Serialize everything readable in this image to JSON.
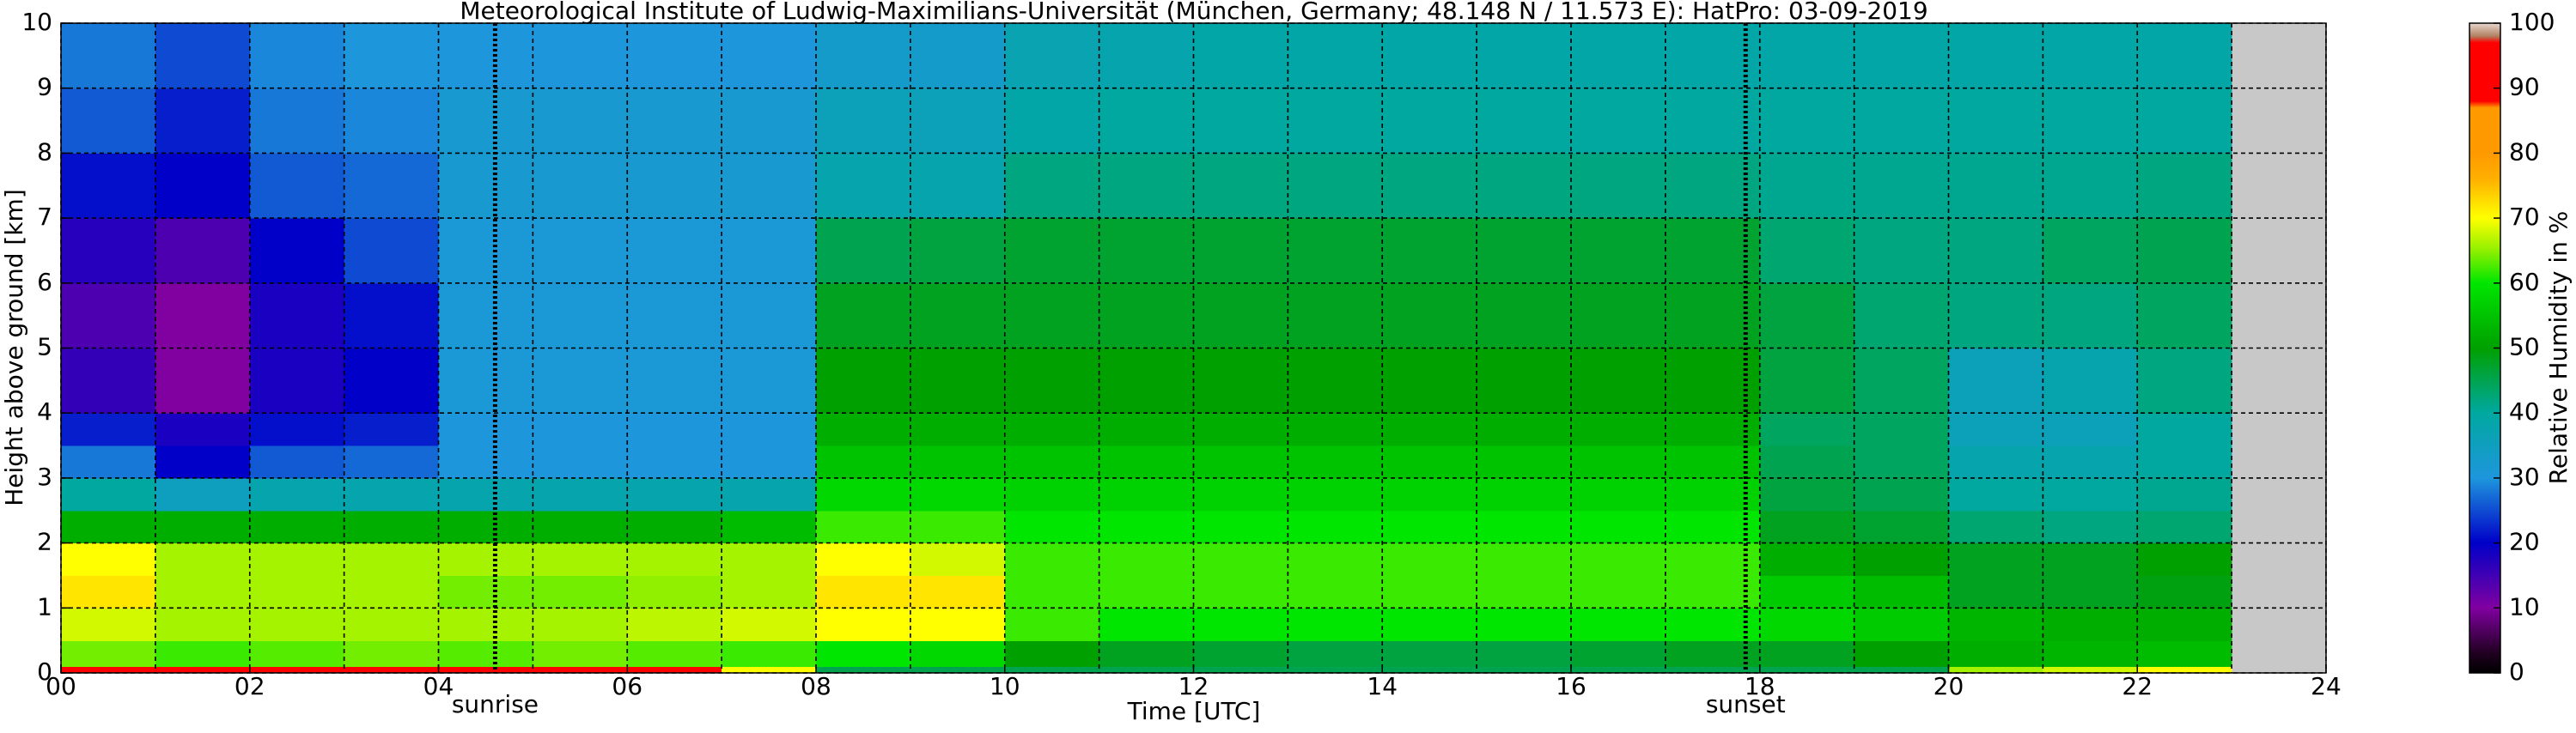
{
  "chart_data": {
    "type": "heatmap",
    "title": "Meteorological Institute of Ludwig-Maximilians-Universität (München, Germany; 48.148 N / 11.573 E):    HatPro: 03-09-2019",
    "xlabel": "Time [UTC]",
    "ylabel": "Height above ground [km]",
    "colorbar_label": "Relative Humidity in %",
    "x_edges": [
      0,
      1,
      2,
      3,
      4,
      5,
      6,
      7,
      8,
      9,
      10,
      11,
      12,
      13,
      14,
      15,
      16,
      17,
      18,
      19,
      20,
      21,
      22,
      23
    ],
    "y_edges": [
      0,
      0.1,
      0.5,
      1,
      1.5,
      2,
      2.5,
      3,
      3.5,
      4,
      5,
      6,
      7,
      8,
      9,
      10
    ],
    "values": [
      [
        92,
        92,
        92,
        92,
        92,
        92,
        92,
        70,
        45,
        45,
        45,
        45,
        45,
        45,
        45,
        45,
        45,
        45,
        45,
        45,
        66,
        68,
        70
      ],
      [
        64,
        62,
        63,
        64,
        63,
        64,
        63,
        62,
        60,
        58,
        50,
        48,
        47,
        46,
        46,
        46,
        47,
        48,
        48,
        50,
        52,
        53,
        54
      ],
      [
        68,
        66,
        66,
        66,
        66,
        66,
        67,
        68,
        70,
        70,
        62,
        60,
        60,
        60,
        60,
        60,
        60,
        60,
        58,
        56,
        53,
        52,
        52
      ],
      [
        72,
        66,
        66,
        66,
        64,
        64,
        65,
        66,
        72,
        72,
        62,
        62,
        62,
        62,
        62,
        62,
        62,
        62,
        56,
        54,
        48,
        48,
        49
      ],
      [
        70,
        66,
        66,
        66,
        66,
        66,
        66,
        66,
        70,
        68,
        62,
        62,
        62,
        62,
        62,
        62,
        62,
        62,
        52,
        50,
        48,
        48,
        50
      ],
      [
        52,
        52,
        52,
        52,
        52,
        52,
        52,
        54,
        62,
        62,
        60,
        60,
        60,
        60,
        60,
        60,
        60,
        60,
        48,
        47,
        43,
        42,
        43
      ],
      [
        40,
        35,
        38,
        38,
        38,
        38,
        38,
        38,
        58,
        58,
        57,
        57,
        57,
        57,
        57,
        57,
        57,
        57,
        46,
        45,
        40,
        40,
        41
      ],
      [
        28,
        20,
        26,
        27,
        30,
        30,
        30,
        30,
        55,
        55,
        55,
        55,
        55,
        55,
        55,
        55,
        55,
        55,
        45,
        44,
        38,
        38,
        40
      ],
      [
        22,
        18,
        21,
        22,
        30,
        30,
        30,
        30,
        52,
        52,
        52,
        52,
        52,
        52,
        52,
        52,
        52,
        52,
        44,
        44,
        36,
        36,
        40
      ],
      [
        16,
        10,
        18,
        20,
        31,
        31,
        31,
        31,
        50,
        50,
        50,
        50,
        50,
        50,
        50,
        50,
        50,
        50,
        46,
        44,
        36,
        38,
        42
      ],
      [
        14,
        10,
        18,
        21,
        31,
        31,
        31,
        31,
        48,
        48,
        48,
        48,
        48,
        48,
        48,
        48,
        48,
        48,
        46,
        43,
        42,
        42,
        44
      ],
      [
        17,
        14,
        20,
        25,
        31,
        31,
        31,
        31,
        45,
        46,
        47,
        47,
        47,
        47,
        47,
        47,
        47,
        47,
        43,
        42,
        42,
        44,
        45
      ],
      [
        21,
        20,
        26,
        27,
        32,
        32,
        32,
        32,
        38,
        38,
        42,
        42,
        42,
        42,
        42,
        42,
        42,
        42,
        41,
        41,
        41,
        41,
        42
      ],
      [
        26,
        22,
        28,
        29,
        32,
        32,
        32,
        32,
        36,
        36,
        39,
        40,
        40,
        40,
        40,
        40,
        40,
        40,
        40,
        40,
        40,
        40,
        40
      ],
      [
        28,
        25,
        29,
        30,
        30,
        30,
        30,
        30,
        33,
        33,
        37,
        38,
        39,
        39,
        39,
        39,
        39,
        39,
        39,
        39,
        39,
        39,
        39
      ]
    ],
    "xlim": [
      0,
      24
    ],
    "xticks": [
      {
        "value": 0,
        "label": "00"
      },
      {
        "value": 2,
        "label": "02"
      },
      {
        "value": 4,
        "label": "04"
      },
      {
        "value": 6,
        "label": "06"
      },
      {
        "value": 8,
        "label": "08"
      },
      {
        "value": 10,
        "label": "10"
      },
      {
        "value": 12,
        "label": "12"
      },
      {
        "value": 14,
        "label": "14"
      },
      {
        "value": 16,
        "label": "16"
      },
      {
        "value": 18,
        "label": "18"
      },
      {
        "value": 20,
        "label": "20"
      },
      {
        "value": 22,
        "label": "22"
      },
      {
        "value": 24,
        "label": "24"
      }
    ],
    "xminor": [
      1,
      3,
      5,
      7,
      9,
      11,
      13,
      15,
      17,
      19,
      21,
      23
    ],
    "ylim": [
      0,
      10
    ],
    "yticks": [
      0,
      1,
      2,
      3,
      4,
      5,
      6,
      7,
      8,
      9,
      10
    ],
    "grid": true,
    "missing_color": "#c8c8c8",
    "clim": [
      0,
      100
    ],
    "cticks": [
      0,
      10,
      20,
      30,
      40,
      50,
      60,
      70,
      80,
      90,
      100
    ],
    "colorscale": [
      [
        0,
        "#000000"
      ],
      [
        3,
        "#200020"
      ],
      [
        10,
        "#8000a0"
      ],
      [
        20,
        "#0000c8"
      ],
      [
        30,
        "#1e96dc"
      ],
      [
        40,
        "#00a8a0"
      ],
      [
        50,
        "#00a000"
      ],
      [
        60,
        "#00e600"
      ],
      [
        65,
        "#90f000"
      ],
      [
        70,
        "#ffff00"
      ],
      [
        76,
        "#ffb000"
      ],
      [
        80,
        "#ff9900"
      ],
      [
        87,
        "#ff9900"
      ],
      [
        88,
        "#ff0000"
      ],
      [
        97,
        "#ff0000"
      ],
      [
        98,
        "#b08060"
      ],
      [
        100,
        "#e8d8d0"
      ]
    ],
    "annotations": [
      {
        "x": 4.6,
        "label": "sunrise"
      },
      {
        "x": 17.85,
        "label": "sunset"
      }
    ]
  }
}
